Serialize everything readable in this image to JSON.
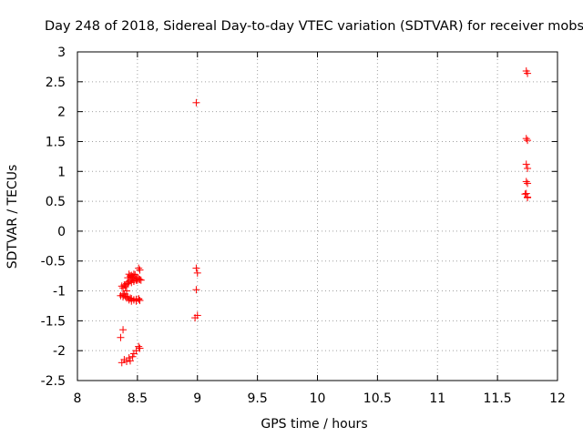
{
  "chart_data": {
    "type": "scatter",
    "title": "Day 248 of 2018, Sidereal Day-to-day VTEC variation (SDTVAR) for receiver mobs",
    "xlabel": "GPS time / hours",
    "ylabel": "SDTVAR / TECUs",
    "xlim": [
      8,
      12
    ],
    "ylim": [
      -2.5,
      3
    ],
    "xticks": [
      8,
      8.5,
      9,
      9.5,
      10,
      10.5,
      11,
      11.5,
      12
    ],
    "xtick_labels": [
      "8",
      "8.5",
      "9",
      "9.5",
      "10",
      "10.5",
      "11",
      "11.5",
      "12"
    ],
    "yticks": [
      3,
      2.5,
      2,
      1.5,
      1,
      0.5,
      0,
      -0.5,
      -1,
      -1.5,
      -2,
      -2.5
    ],
    "ytick_labels": [
      "3",
      "2.5",
      "2",
      "1.5",
      "1",
      "0.5",
      "0",
      "-0.5",
      "-1",
      "-1.5",
      "-2",
      "-2.5"
    ],
    "grid": true,
    "marker_color": "#ff0000",
    "series": [
      {
        "name": "SDTVAR",
        "x": [
          8.36,
          8.38,
          8.4,
          8.42,
          8.44,
          8.45,
          8.47,
          8.49,
          8.51,
          8.52,
          8.37,
          8.39,
          8.41,
          8.43,
          8.45,
          8.47,
          8.49,
          8.51,
          8.53,
          8.38,
          8.4,
          8.42,
          8.44,
          8.46,
          8.48,
          8.5,
          8.52,
          8.38,
          8.41,
          8.42,
          8.44,
          8.45,
          8.46,
          8.47,
          8.49,
          8.5,
          8.51,
          8.52,
          8.4,
          8.43,
          8.45,
          8.47,
          8.38,
          8.39,
          8.41,
          8.43,
          8.45,
          8.47,
          8.49,
          8.51,
          8.36,
          8.38,
          8.37,
          8.39,
          8.41,
          8.43,
          8.44,
          8.46,
          8.47,
          8.49,
          8.51,
          8.52,
          8.99,
          8.99,
          9.0,
          8.99,
          8.98,
          9.0,
          11.74,
          11.75,
          11.74,
          11.75,
          11.74,
          11.75,
          11.74,
          11.75,
          11.74,
          11.75,
          11.73,
          11.75
        ],
        "y": [
          -1.08,
          -1.07,
          -1.09,
          -1.1,
          -1.12,
          -1.13,
          -1.15,
          -1.17,
          -1.14,
          -1.16,
          -0.92,
          -0.9,
          -0.88,
          -0.85,
          -0.86,
          -0.84,
          -0.82,
          -0.8,
          -0.82,
          -0.95,
          -0.93,
          -0.78,
          -0.75,
          -0.76,
          -0.73,
          -0.78,
          -0.81,
          -1.05,
          -1.0,
          -0.88,
          -0.82,
          -0.77,
          -0.79,
          -0.83,
          -0.8,
          -0.82,
          -0.62,
          -0.65,
          -0.9,
          -0.72,
          -0.74,
          -0.72,
          -1.1,
          -1.05,
          -1.12,
          -1.15,
          -1.17,
          -1.15,
          -1.14,
          -1.13,
          -1.78,
          -1.65,
          -2.2,
          -2.15,
          -2.18,
          -2.12,
          -2.17,
          -2.1,
          -2.05,
          -2.0,
          -1.93,
          -1.96,
          2.15,
          -0.62,
          -0.7,
          -0.98,
          -1.45,
          -1.41,
          2.68,
          2.64,
          1.55,
          1.52,
          1.12,
          1.05,
          0.83,
          0.8,
          0.63,
          0.57,
          0.62,
          0.56
        ]
      }
    ]
  }
}
